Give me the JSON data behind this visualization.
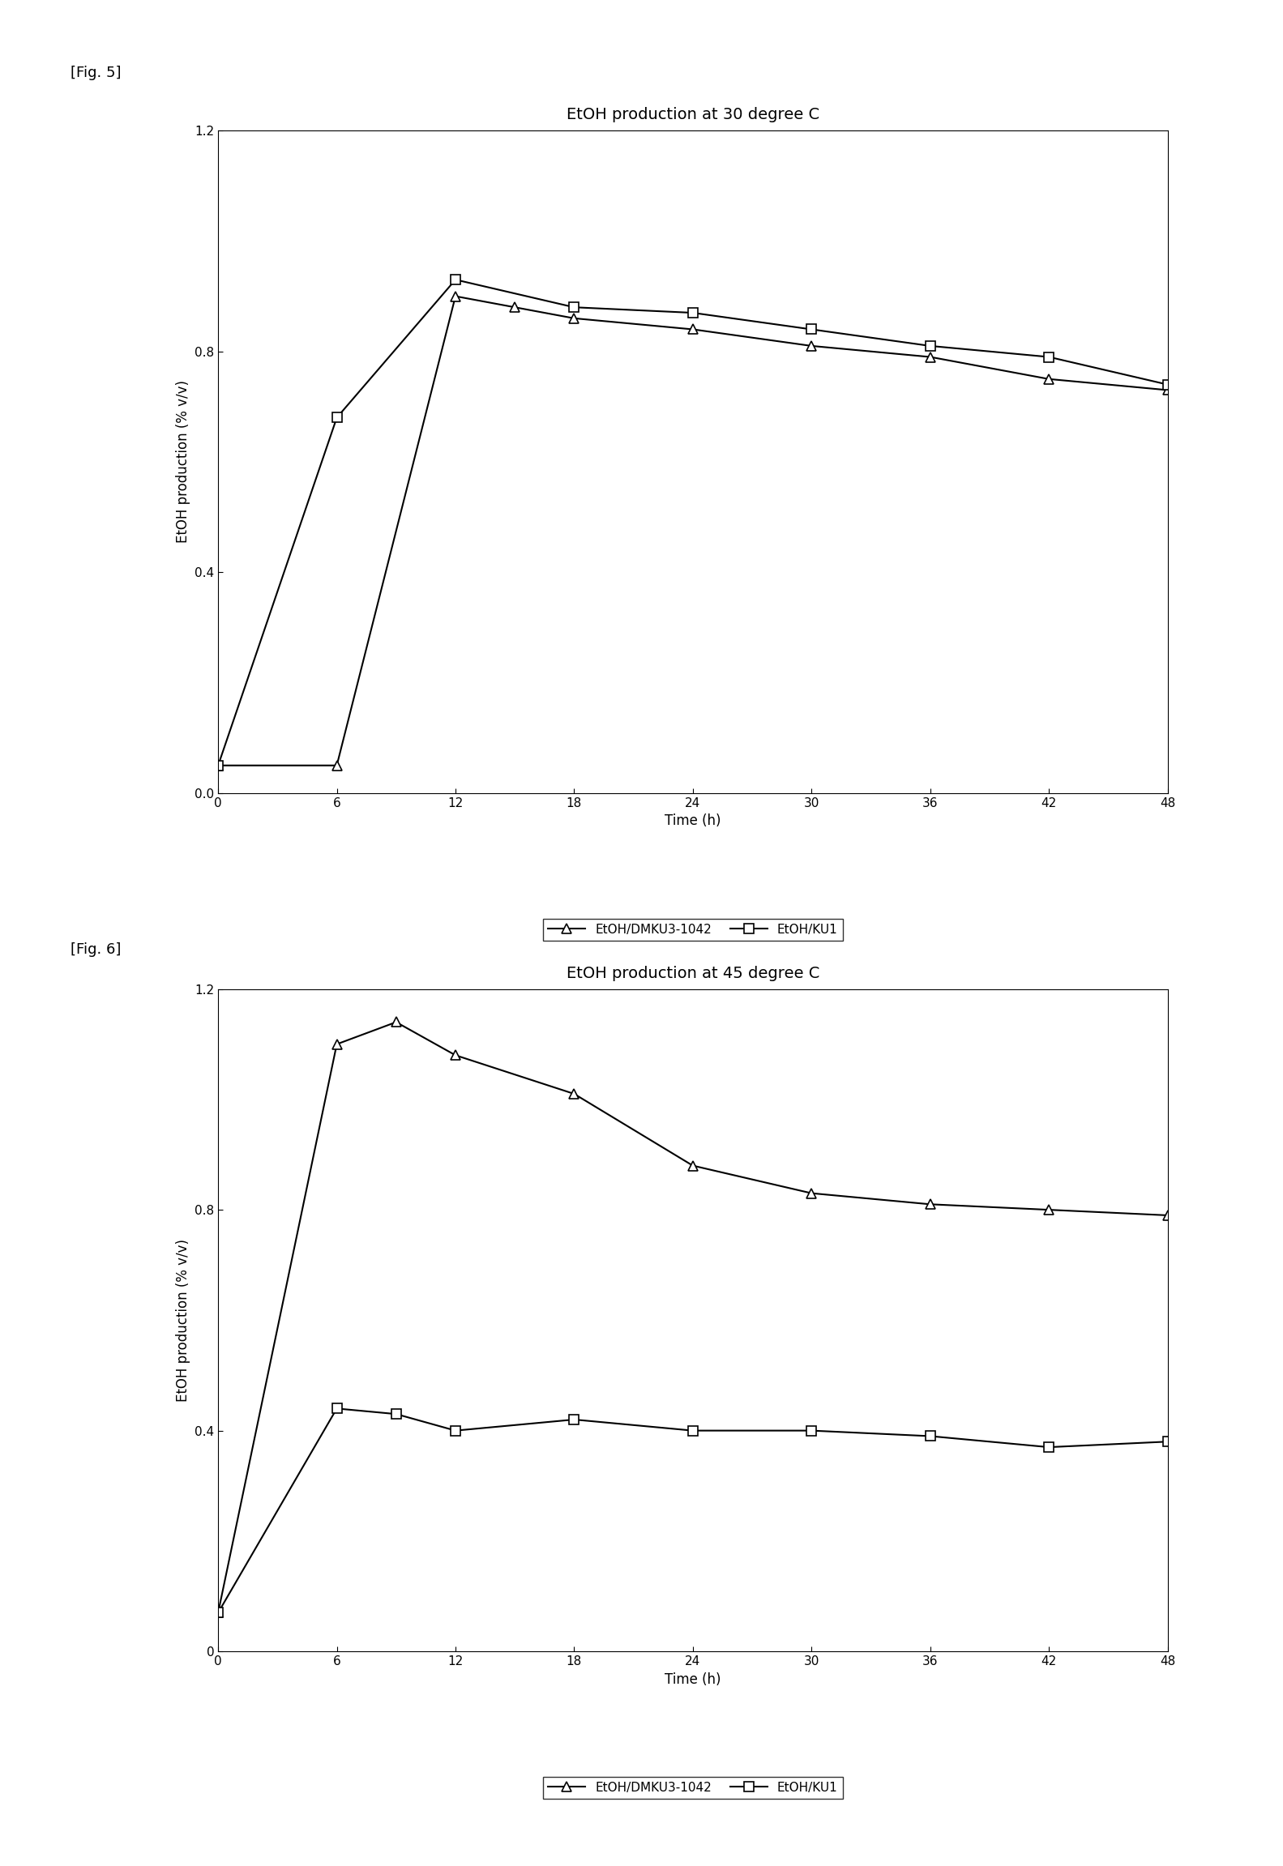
{
  "fig5_title": "EtOH production at 30 degree C",
  "fig6_title": "EtOH production at 45 degree C",
  "fig5_label": "[Fig. 5]",
  "fig6_label": "[Fig. 6]",
  "xlabel": "Time (h)",
  "ylabel": "EtOH production (% v/v)",
  "xticks": [
    0,
    6,
    12,
    18,
    24,
    30,
    36,
    42,
    48
  ],
  "yticks_fig5": [
    0.0,
    0.4,
    0.8,
    1.2
  ],
  "yticks_fig6": [
    0.0,
    0.4,
    0.8,
    1.2
  ],
  "ylim": [
    0.0,
    1.2
  ],
  "xlim": [
    0,
    48
  ],
  "fig5_dmku_x": [
    0,
    6,
    12,
    15,
    18,
    24,
    30,
    36,
    42,
    48
  ],
  "fig5_dmku_y": [
    0.05,
    0.05,
    0.9,
    0.88,
    0.86,
    0.84,
    0.81,
    0.79,
    0.75,
    0.73
  ],
  "fig5_ku1_x": [
    0,
    6,
    12,
    18,
    24,
    30,
    36,
    42,
    48
  ],
  "fig5_ku1_y": [
    0.05,
    0.68,
    0.93,
    0.88,
    0.87,
    0.84,
    0.81,
    0.79,
    0.74
  ],
  "fig6_dmku_x": [
    0,
    6,
    9,
    12,
    18,
    24,
    30,
    36,
    42,
    48
  ],
  "fig6_dmku_y": [
    0.07,
    1.1,
    1.14,
    1.08,
    1.01,
    0.88,
    0.83,
    0.81,
    0.8,
    0.79
  ],
  "fig6_ku1_x": [
    0,
    6,
    9,
    12,
    18,
    24,
    30,
    36,
    42,
    48
  ],
  "fig6_ku1_y": [
    0.07,
    0.44,
    0.43,
    0.4,
    0.42,
    0.4,
    0.4,
    0.39,
    0.37,
    0.38
  ],
  "legend_dmku": "EtOH/DMKU3-1042",
  "legend_ku1": "EtOH/KU1",
  "line_color": "#000000",
  "bg_color": "#ffffff",
  "title_fontsize": 14,
  "label_fontsize": 12,
  "tick_fontsize": 11,
  "legend_fontsize": 11
}
